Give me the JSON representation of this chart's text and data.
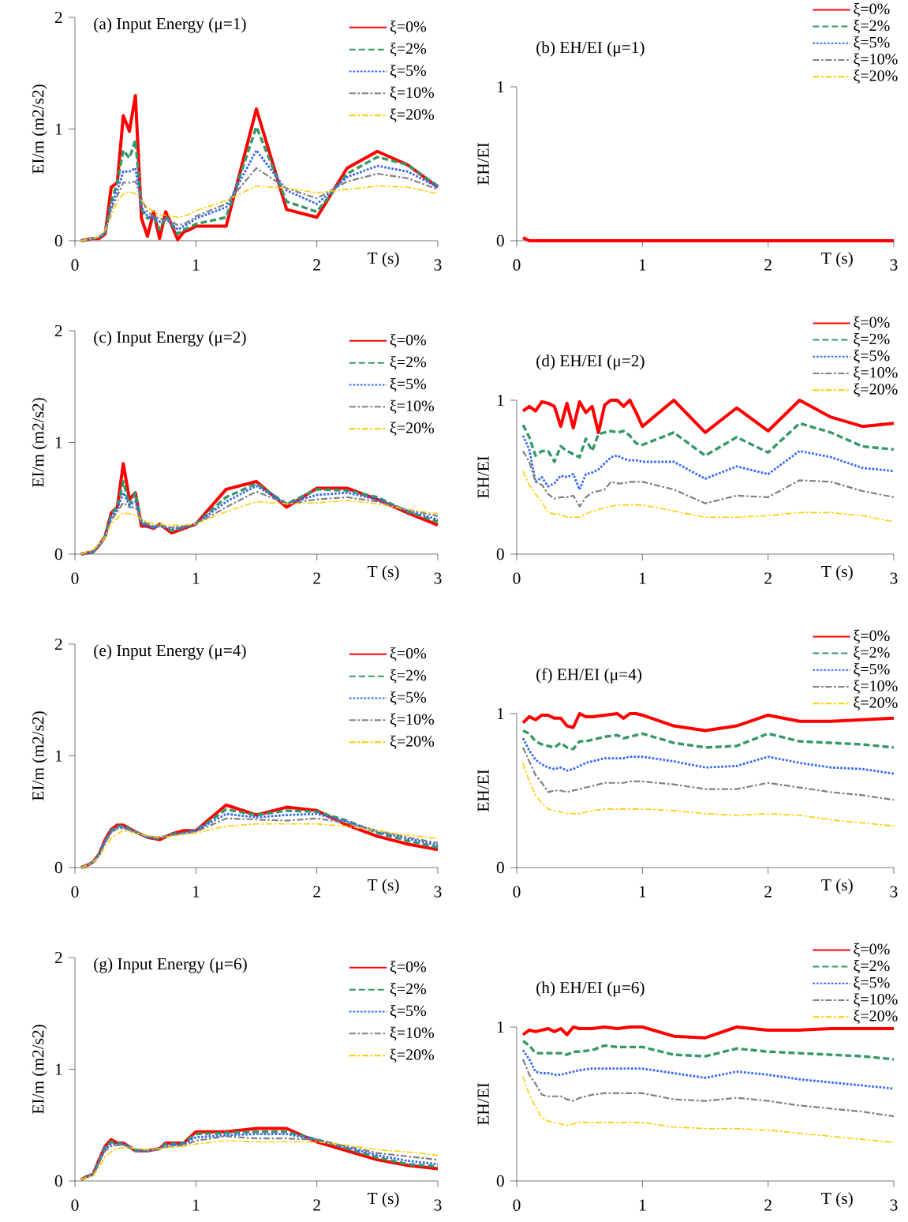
{
  "chart_data": [
    {
      "type": "line",
      "title": "(a) Input Energy (μ=1)",
      "xlabel": "T (s)",
      "ylabel": "EI/m (m2/s2)",
      "xlim": [
        0,
        3
      ],
      "ylim": [
        0,
        2
      ],
      "xticks": [
        0,
        1,
        2,
        3
      ],
      "yticks": [
        0,
        1,
        2
      ],
      "legend": "top right",
      "x": [
        0.05,
        0.1,
        0.15,
        0.2,
        0.25,
        0.3,
        0.35,
        0.4,
        0.45,
        0.5,
        0.55,
        0.6,
        0.65,
        0.7,
        0.75,
        0.8,
        0.85,
        0.9,
        0.95,
        1.0,
        1.25,
        1.5,
        1.75,
        2.0,
        2.25,
        2.5,
        2.75,
        3.0
      ],
      "series": [
        {
          "name": "ξ=0%",
          "color": "#ff0000",
          "line_style": "solid",
          "values": [
            0,
            0.01,
            0.02,
            0.02,
            0.06,
            0.48,
            0.52,
            1.12,
            0.98,
            1.3,
            0.2,
            0.04,
            0.26,
            0.02,
            0.26,
            0.14,
            0.01,
            0.08,
            0.1,
            0.13,
            0.13,
            1.18,
            0.28,
            0.21,
            0.65,
            0.8,
            0.68,
            0.48
          ]
        },
        {
          "name": "ξ=2%",
          "color": "#339966",
          "line_style": "dashed",
          "values": [
            0,
            0.01,
            0.02,
            0.03,
            0.07,
            0.35,
            0.52,
            0.81,
            0.74,
            0.9,
            0.28,
            0.2,
            0.22,
            0.1,
            0.22,
            0.15,
            0.06,
            0.1,
            0.12,
            0.15,
            0.21,
            1.02,
            0.35,
            0.26,
            0.6,
            0.75,
            0.68,
            0.49
          ]
        },
        {
          "name": "ξ=5%",
          "color": "#3366ff",
          "line_style": "dotted",
          "values": [
            0,
            0.01,
            0.02,
            0.03,
            0.07,
            0.3,
            0.45,
            0.62,
            0.62,
            0.65,
            0.3,
            0.22,
            0.2,
            0.17,
            0.2,
            0.15,
            0.1,
            0.13,
            0.16,
            0.2,
            0.3,
            0.81,
            0.45,
            0.33,
            0.57,
            0.67,
            0.62,
            0.48
          ]
        },
        {
          "name": "ξ=10%",
          "color": "#808080",
          "line_style": "dashdot",
          "values": [
            0,
            0.01,
            0.02,
            0.03,
            0.08,
            0.28,
            0.4,
            0.52,
            0.52,
            0.53,
            0.38,
            0.26,
            0.22,
            0.2,
            0.18,
            0.17,
            0.14,
            0.15,
            0.18,
            0.22,
            0.33,
            0.65,
            0.47,
            0.38,
            0.53,
            0.6,
            0.56,
            0.46
          ]
        },
        {
          "name": "ξ=20%",
          "color": "#ffcc00",
          "line_style": "dashdot",
          "values": [
            0,
            0.01,
            0.02,
            0.04,
            0.1,
            0.22,
            0.35,
            0.42,
            0.44,
            0.42,
            0.36,
            0.3,
            0.26,
            0.23,
            0.23,
            0.22,
            0.21,
            0.22,
            0.24,
            0.27,
            0.36,
            0.49,
            0.47,
            0.43,
            0.46,
            0.49,
            0.48,
            0.42
          ]
        }
      ]
    },
    {
      "type": "line",
      "title": "(b) EH/EI (μ=1)",
      "xlabel": "T (s)",
      "ylabel": "EH/EI",
      "xlim": [
        0,
        3
      ],
      "ylim": [
        0,
        1
      ],
      "xticks": [
        0,
        1,
        2,
        3
      ],
      "yticks": [
        0,
        1
      ],
      "legend": "top right",
      "x": [
        0.05,
        0.1,
        0.5,
        1.0,
        1.5,
        2.0,
        2.5,
        3.0
      ],
      "series": [
        {
          "name": "ξ=0%",
          "color": "#ff0000",
          "line_style": "solid",
          "values": [
            0.02,
            0,
            0,
            0,
            0,
            0,
            0,
            0
          ]
        },
        {
          "name": "ξ=2%",
          "color": "#339966",
          "line_style": "dashed",
          "values": [
            null,
            null,
            null,
            null,
            null,
            null,
            null,
            null
          ]
        },
        {
          "name": "ξ=5%",
          "color": "#3366ff",
          "line_style": "dotted",
          "values": [
            null,
            null,
            null,
            null,
            null,
            null,
            null,
            null
          ]
        },
        {
          "name": "ξ=10%",
          "color": "#808080",
          "line_style": "dashdot",
          "values": [
            null,
            null,
            null,
            null,
            null,
            null,
            null,
            null
          ]
        },
        {
          "name": "ξ=20%",
          "color": "#ffcc00",
          "line_style": "dashdot",
          "values": [
            null,
            null,
            null,
            null,
            null,
            null,
            null,
            null
          ]
        }
      ]
    },
    {
      "type": "line",
      "title": "(c) Input Energy (μ=2)",
      "xlabel": "T (s)",
      "ylabel": "EI/m (m2/s2)",
      "xlim": [
        0,
        3
      ],
      "ylim": [
        0,
        2
      ],
      "xticks": [
        0,
        1,
        2,
        3
      ],
      "yticks": [
        0,
        1,
        2
      ],
      "legend": "top right",
      "x": [
        0.05,
        0.1,
        0.15,
        0.2,
        0.25,
        0.3,
        0.35,
        0.4,
        0.45,
        0.5,
        0.55,
        0.6,
        0.65,
        0.7,
        0.75,
        0.8,
        0.9,
        1.0,
        1.25,
        1.5,
        1.75,
        2.0,
        2.25,
        2.5,
        2.75,
        3.0
      ],
      "series": [
        {
          "name": "ξ=0%",
          "color": "#ff0000",
          "line_style": "solid",
          "values": [
            0,
            0.01,
            0.02,
            0.08,
            0.16,
            0.37,
            0.42,
            0.81,
            0.49,
            0.55,
            0.25,
            0.25,
            0.23,
            0.27,
            0.23,
            0.19,
            0.23,
            0.27,
            0.58,
            0.65,
            0.42,
            0.59,
            0.59,
            0.49,
            0.37,
            0.26
          ]
        },
        {
          "name": "ξ=2%",
          "color": "#339966",
          "line_style": "dashed",
          "values": [
            0,
            0.01,
            0.02,
            0.08,
            0.16,
            0.36,
            0.42,
            0.65,
            0.44,
            0.55,
            0.27,
            0.27,
            0.24,
            0.26,
            0.24,
            0.21,
            0.24,
            0.27,
            0.51,
            0.63,
            0.45,
            0.58,
            0.57,
            0.51,
            0.38,
            0.29
          ]
        },
        {
          "name": "ξ=5%",
          "color": "#3366ff",
          "line_style": "dotted",
          "values": [
            0,
            0.01,
            0.02,
            0.08,
            0.16,
            0.33,
            0.4,
            0.55,
            0.44,
            0.47,
            0.28,
            0.24,
            0.24,
            0.25,
            0.24,
            0.23,
            0.24,
            0.27,
            0.47,
            0.61,
            0.45,
            0.53,
            0.55,
            0.49,
            0.39,
            0.31
          ]
        },
        {
          "name": "ξ=10%",
          "color": "#808080",
          "line_style": "dashdot",
          "values": [
            0,
            0.01,
            0.03,
            0.08,
            0.16,
            0.3,
            0.38,
            0.46,
            0.42,
            0.42,
            0.31,
            0.27,
            0.25,
            0.26,
            0.24,
            0.24,
            0.25,
            0.27,
            0.42,
            0.56,
            0.45,
            0.49,
            0.51,
            0.47,
            0.4,
            0.34
          ]
        },
        {
          "name": "ξ=20%",
          "color": "#ffcc00",
          "line_style": "dashdot",
          "values": [
            0,
            0.02,
            0.04,
            0.09,
            0.15,
            0.28,
            0.32,
            0.37,
            0.36,
            0.35,
            0.31,
            0.29,
            0.27,
            0.27,
            0.26,
            0.26,
            0.26,
            0.27,
            0.38,
            0.47,
            0.45,
            0.46,
            0.48,
            0.45,
            0.4,
            0.36
          ]
        }
      ]
    },
    {
      "type": "line",
      "title": "(d) EH/EI (μ=2)",
      "xlabel": "T (s)",
      "ylabel": "EH/EI",
      "xlim": [
        0,
        3
      ],
      "ylim": [
        0,
        1
      ],
      "xticks": [
        0,
        1,
        2,
        3
      ],
      "yticks": [
        0,
        1
      ],
      "legend": "top right",
      "x": [
        0.05,
        0.1,
        0.15,
        0.2,
        0.25,
        0.3,
        0.35,
        0.4,
        0.45,
        0.5,
        0.55,
        0.6,
        0.65,
        0.7,
        0.75,
        0.8,
        0.85,
        0.9,
        0.95,
        1.0,
        1.25,
        1.5,
        1.75,
        2.0,
        2.25,
        2.5,
        2.75,
        3.0
      ],
      "series": [
        {
          "name": "ξ=0%",
          "color": "#ff0000",
          "line_style": "solid",
          "values": [
            0.93,
            0.96,
            0.93,
            0.99,
            0.98,
            0.96,
            0.83,
            0.98,
            0.82,
            0.99,
            0.92,
            0.96,
            0.79,
            0.97,
            1.0,
            1.0,
            0.96,
            1.0,
            0.92,
            0.83,
            1.0,
            0.79,
            0.95,
            0.8,
            1.0,
            0.89,
            0.83,
            0.85
          ]
        },
        {
          "name": "ξ=2%",
          "color": "#339966",
          "line_style": "dashed",
          "values": [
            0.84,
            0.76,
            0.64,
            0.67,
            0.67,
            0.6,
            0.7,
            0.67,
            0.65,
            0.63,
            0.75,
            0.67,
            0.78,
            0.79,
            0.8,
            0.79,
            0.8,
            0.77,
            0.72,
            0.71,
            0.79,
            0.64,
            0.76,
            0.66,
            0.85,
            0.79,
            0.7,
            0.68
          ]
        },
        {
          "name": "ξ=5%",
          "color": "#3366ff",
          "line_style": "dotted",
          "values": [
            0.77,
            0.68,
            0.47,
            0.5,
            0.44,
            0.46,
            0.51,
            0.5,
            0.52,
            0.42,
            0.52,
            0.53,
            0.55,
            0.59,
            0.63,
            0.64,
            0.62,
            0.61,
            0.61,
            0.6,
            0.6,
            0.49,
            0.57,
            0.52,
            0.67,
            0.63,
            0.56,
            0.54
          ]
        },
        {
          "name": "ξ=10%",
          "color": "#808080",
          "line_style": "dashdot",
          "values": [
            0.67,
            0.6,
            0.47,
            0.45,
            0.39,
            0.36,
            0.37,
            0.37,
            0.38,
            0.31,
            0.37,
            0.4,
            0.41,
            0.42,
            0.47,
            0.46,
            0.46,
            0.47,
            0.47,
            0.47,
            0.42,
            0.33,
            0.38,
            0.37,
            0.48,
            0.47,
            0.41,
            0.37
          ]
        },
        {
          "name": "ξ=20%",
          "color": "#ffcc00",
          "line_style": "dashdot",
          "values": [
            0.54,
            0.45,
            0.39,
            0.34,
            0.27,
            0.26,
            0.26,
            0.24,
            0.24,
            0.24,
            0.26,
            0.28,
            0.29,
            0.3,
            0.31,
            0.32,
            0.32,
            0.32,
            0.32,
            0.32,
            0.28,
            0.24,
            0.24,
            0.25,
            0.27,
            0.27,
            0.25,
            0.21
          ]
        }
      ]
    },
    {
      "type": "line",
      "title": "(e) Input Energy (μ=4)",
      "xlabel": "T (s)",
      "ylabel": "EI/m (m2/s2)",
      "xlim": [
        0,
        3
      ],
      "ylim": [
        0,
        2
      ],
      "xticks": [
        0,
        1,
        2,
        3
      ],
      "yticks": [
        0,
        1,
        2
      ],
      "legend": "top right",
      "x": [
        0.05,
        0.1,
        0.15,
        0.2,
        0.25,
        0.3,
        0.35,
        0.4,
        0.5,
        0.6,
        0.7,
        0.8,
        0.9,
        1.0,
        1.25,
        1.5,
        1.75,
        2.0,
        2.25,
        2.5,
        2.75,
        3.0
      ],
      "series": [
        {
          "name": "ξ=0%",
          "color": "#ff0000",
          "line_style": "solid",
          "values": [
            0,
            0.02,
            0.05,
            0.12,
            0.25,
            0.34,
            0.38,
            0.38,
            0.32,
            0.27,
            0.25,
            0.3,
            0.33,
            0.33,
            0.56,
            0.47,
            0.54,
            0.51,
            0.38,
            0.28,
            0.21,
            0.16
          ]
        },
        {
          "name": "ξ=2%",
          "color": "#339966",
          "line_style": "dashed",
          "values": [
            0,
            0.02,
            0.05,
            0.12,
            0.24,
            0.33,
            0.37,
            0.37,
            0.32,
            0.27,
            0.26,
            0.3,
            0.31,
            0.33,
            0.52,
            0.47,
            0.51,
            0.5,
            0.42,
            0.31,
            0.24,
            0.18
          ]
        },
        {
          "name": "ξ=5%",
          "color": "#3366ff",
          "line_style": "dotted",
          "values": [
            0,
            0.02,
            0.05,
            0.12,
            0.24,
            0.32,
            0.36,
            0.36,
            0.32,
            0.27,
            0.27,
            0.29,
            0.31,
            0.33,
            0.48,
            0.45,
            0.47,
            0.48,
            0.41,
            0.32,
            0.26,
            0.2
          ]
        },
        {
          "name": "ξ=10%",
          "color": "#808080",
          "line_style": "dashdot",
          "values": [
            0,
            0.02,
            0.05,
            0.11,
            0.22,
            0.31,
            0.35,
            0.35,
            0.32,
            0.28,
            0.27,
            0.29,
            0.3,
            0.32,
            0.44,
            0.43,
            0.42,
            0.44,
            0.4,
            0.33,
            0.27,
            0.22
          ]
        },
        {
          "name": "ξ=20%",
          "color": "#ffcc00",
          "line_style": "dashdot",
          "values": [
            0,
            0.02,
            0.05,
            0.1,
            0.19,
            0.26,
            0.3,
            0.33,
            0.31,
            0.28,
            0.27,
            0.28,
            0.3,
            0.31,
            0.37,
            0.39,
            0.39,
            0.39,
            0.37,
            0.33,
            0.29,
            0.26
          ]
        }
      ]
    },
    {
      "type": "line",
      "title": "(f) EH/EI (μ=4)",
      "xlabel": "T (s)",
      "ylabel": "EH/EI",
      "xlim": [
        0,
        3
      ],
      "ylim": [
        0,
        1
      ],
      "xticks": [
        0,
        1,
        2,
        3
      ],
      "yticks": [
        0,
        1
      ],
      "legend": "top right",
      "x": [
        0.05,
        0.1,
        0.15,
        0.2,
        0.25,
        0.3,
        0.35,
        0.4,
        0.45,
        0.5,
        0.55,
        0.6,
        0.7,
        0.8,
        0.85,
        0.9,
        0.95,
        1.0,
        1.25,
        1.5,
        1.75,
        2.0,
        2.25,
        2.5,
        2.75,
        3.0
      ],
      "series": [
        {
          "name": "ξ=0%",
          "color": "#ff0000",
          "line_style": "solid",
          "values": [
            0.94,
            0.98,
            0.96,
            0.99,
            0.99,
            0.97,
            0.97,
            0.92,
            0.91,
            1.0,
            0.98,
            0.98,
            0.99,
            1.0,
            0.97,
            1.0,
            1.0,
            0.99,
            0.92,
            0.89,
            0.92,
            0.99,
            0.95,
            0.95,
            0.96,
            0.97
          ]
        },
        {
          "name": "ξ=2%",
          "color": "#339966",
          "line_style": "dashed",
          "values": [
            0.89,
            0.87,
            0.82,
            0.8,
            0.79,
            0.78,
            0.81,
            0.78,
            0.77,
            0.82,
            0.82,
            0.83,
            0.85,
            0.86,
            0.84,
            0.85,
            0.86,
            0.87,
            0.81,
            0.78,
            0.79,
            0.87,
            0.82,
            0.81,
            0.8,
            0.78
          ]
        },
        {
          "name": "ξ=5%",
          "color": "#3366ff",
          "line_style": "dotted",
          "values": [
            0.84,
            0.76,
            0.7,
            0.67,
            0.65,
            0.64,
            0.65,
            0.63,
            0.64,
            0.66,
            0.68,
            0.69,
            0.71,
            0.71,
            0.71,
            0.72,
            0.72,
            0.72,
            0.69,
            0.65,
            0.66,
            0.72,
            0.68,
            0.65,
            0.64,
            0.61
          ]
        },
        {
          "name": "ξ=10%",
          "color": "#808080",
          "line_style": "dashdot",
          "values": [
            0.78,
            0.69,
            0.6,
            0.55,
            0.49,
            0.5,
            0.5,
            0.49,
            0.5,
            0.51,
            0.52,
            0.53,
            0.55,
            0.55,
            0.55,
            0.56,
            0.56,
            0.56,
            0.54,
            0.51,
            0.51,
            0.55,
            0.52,
            0.49,
            0.47,
            0.44
          ]
        },
        {
          "name": "ξ=20%",
          "color": "#ffcc00",
          "line_style": "dashdot",
          "values": [
            0.68,
            0.56,
            0.47,
            0.42,
            0.38,
            0.37,
            0.36,
            0.35,
            0.35,
            0.35,
            0.36,
            0.37,
            0.38,
            0.38,
            0.38,
            0.38,
            0.38,
            0.38,
            0.37,
            0.35,
            0.34,
            0.35,
            0.34,
            0.31,
            0.29,
            0.27
          ]
        }
      ]
    },
    {
      "type": "line",
      "title": "(g) Input Energy (μ=6)",
      "xlabel": "T (s)",
      "ylabel": "EI/m (m2/s2)",
      "xlim": [
        0,
        3
      ],
      "ylim": [
        0,
        2
      ],
      "xticks": [
        0,
        1,
        2,
        3
      ],
      "yticks": [
        0,
        1,
        2
      ],
      "legend": "top right",
      "x": [
        0.05,
        0.1,
        0.15,
        0.2,
        0.25,
        0.3,
        0.35,
        0.4,
        0.5,
        0.6,
        0.7,
        0.75,
        0.8,
        0.9,
        1.0,
        1.25,
        1.5,
        1.75,
        2.0,
        2.25,
        2.5,
        2.75,
        3.0
      ],
      "series": [
        {
          "name": "ξ=0%",
          "color": "#ff0000",
          "line_style": "solid",
          "values": [
            0.01,
            0.04,
            0.06,
            0.19,
            0.31,
            0.37,
            0.34,
            0.34,
            0.27,
            0.27,
            0.29,
            0.34,
            0.34,
            0.34,
            0.44,
            0.44,
            0.47,
            0.47,
            0.35,
            0.27,
            0.19,
            0.14,
            0.11
          ]
        },
        {
          "name": "ξ=2%",
          "color": "#339966",
          "line_style": "dashed",
          "values": [
            0.01,
            0.04,
            0.06,
            0.18,
            0.3,
            0.35,
            0.34,
            0.33,
            0.27,
            0.27,
            0.29,
            0.33,
            0.33,
            0.34,
            0.42,
            0.43,
            0.44,
            0.44,
            0.37,
            0.29,
            0.21,
            0.15,
            0.13
          ]
        },
        {
          "name": "ξ=5%",
          "color": "#3366ff",
          "line_style": "dotted",
          "values": [
            null,
            0.04,
            0.06,
            0.17,
            0.29,
            0.33,
            0.33,
            0.33,
            0.28,
            0.27,
            0.29,
            0.31,
            0.32,
            0.33,
            0.39,
            0.41,
            0.42,
            0.42,
            0.37,
            0.3,
            0.23,
            0.18,
            0.15
          ]
        },
        {
          "name": "ξ=10%",
          "color": "#808080",
          "line_style": "dashdot",
          "values": [
            0.01,
            0.04,
            0.06,
            0.16,
            0.27,
            0.31,
            0.32,
            0.32,
            0.29,
            0.27,
            0.29,
            0.3,
            0.31,
            0.32,
            0.36,
            0.4,
            0.38,
            0.38,
            0.37,
            0.31,
            0.25,
            0.22,
            0.19
          ]
        },
        {
          "name": "ξ=20%",
          "color": "#ffcc00",
          "line_style": "dashdot",
          "values": [
            0.01,
            0.03,
            0.05,
            0.12,
            0.22,
            0.26,
            0.29,
            0.3,
            0.29,
            0.28,
            0.29,
            0.3,
            0.3,
            0.31,
            0.33,
            0.36,
            0.35,
            0.35,
            0.35,
            0.32,
            0.28,
            0.26,
            0.23
          ]
        }
      ]
    },
    {
      "type": "line",
      "title": "(h) EH/EI (μ=6)",
      "xlabel": "T (s)",
      "ylabel": "EH/EI",
      "xlim": [
        0,
        3
      ],
      "ylim": [
        0,
        1
      ],
      "xticks": [
        0,
        1,
        2,
        3
      ],
      "yticks": [
        0,
        1
      ],
      "legend": "top right",
      "x": [
        0.05,
        0.1,
        0.15,
        0.2,
        0.25,
        0.3,
        0.35,
        0.4,
        0.45,
        0.5,
        0.6,
        0.7,
        0.8,
        0.9,
        1.0,
        1.25,
        1.5,
        1.75,
        2.0,
        2.25,
        2.5,
        2.75,
        3.0
      ],
      "series": [
        {
          "name": "ξ=0%",
          "color": "#ff0000",
          "line_style": "solid",
          "values": [
            0.95,
            0.98,
            0.97,
            0.98,
            0.99,
            0.97,
            0.99,
            0.95,
            1.0,
            0.99,
            0.99,
            1.0,
            0.99,
            1.0,
            1.0,
            0.94,
            0.93,
            1.0,
            0.98,
            0.98,
            0.99,
            0.99,
            0.99
          ]
        },
        {
          "name": "ξ=2%",
          "color": "#339966",
          "line_style": "dashed",
          "values": [
            0.91,
            0.88,
            0.83,
            0.83,
            0.83,
            0.83,
            0.83,
            0.82,
            0.84,
            0.84,
            0.85,
            0.88,
            0.87,
            0.87,
            0.87,
            0.82,
            0.81,
            0.86,
            0.84,
            0.83,
            0.82,
            0.81,
            0.79
          ]
        },
        {
          "name": "ξ=5%",
          "color": "#3366ff",
          "line_style": "dotted",
          "values": [
            0.85,
            0.79,
            0.71,
            0.7,
            0.7,
            0.69,
            0.69,
            0.7,
            0.71,
            0.72,
            0.73,
            0.73,
            0.73,
            0.73,
            0.73,
            0.7,
            0.67,
            0.71,
            0.69,
            0.66,
            0.64,
            0.62,
            0.6
          ]
        },
        {
          "name": "ξ=10%",
          "color": "#808080",
          "line_style": "dashdot",
          "values": [
            0.79,
            0.69,
            0.63,
            0.56,
            0.55,
            0.55,
            0.55,
            0.53,
            0.52,
            0.54,
            0.56,
            0.57,
            0.57,
            0.57,
            0.57,
            0.53,
            0.52,
            0.54,
            0.52,
            0.49,
            0.47,
            0.45,
            0.42
          ]
        },
        {
          "name": "ξ=20%",
          "color": "#ffcc00",
          "line_style": "dashdot",
          "values": [
            0.68,
            0.56,
            0.48,
            0.41,
            0.39,
            0.38,
            0.37,
            0.36,
            0.37,
            0.38,
            0.38,
            0.38,
            0.38,
            0.38,
            0.38,
            0.35,
            0.34,
            0.34,
            0.33,
            0.31,
            0.29,
            0.27,
            0.25
          ]
        }
      ]
    }
  ]
}
